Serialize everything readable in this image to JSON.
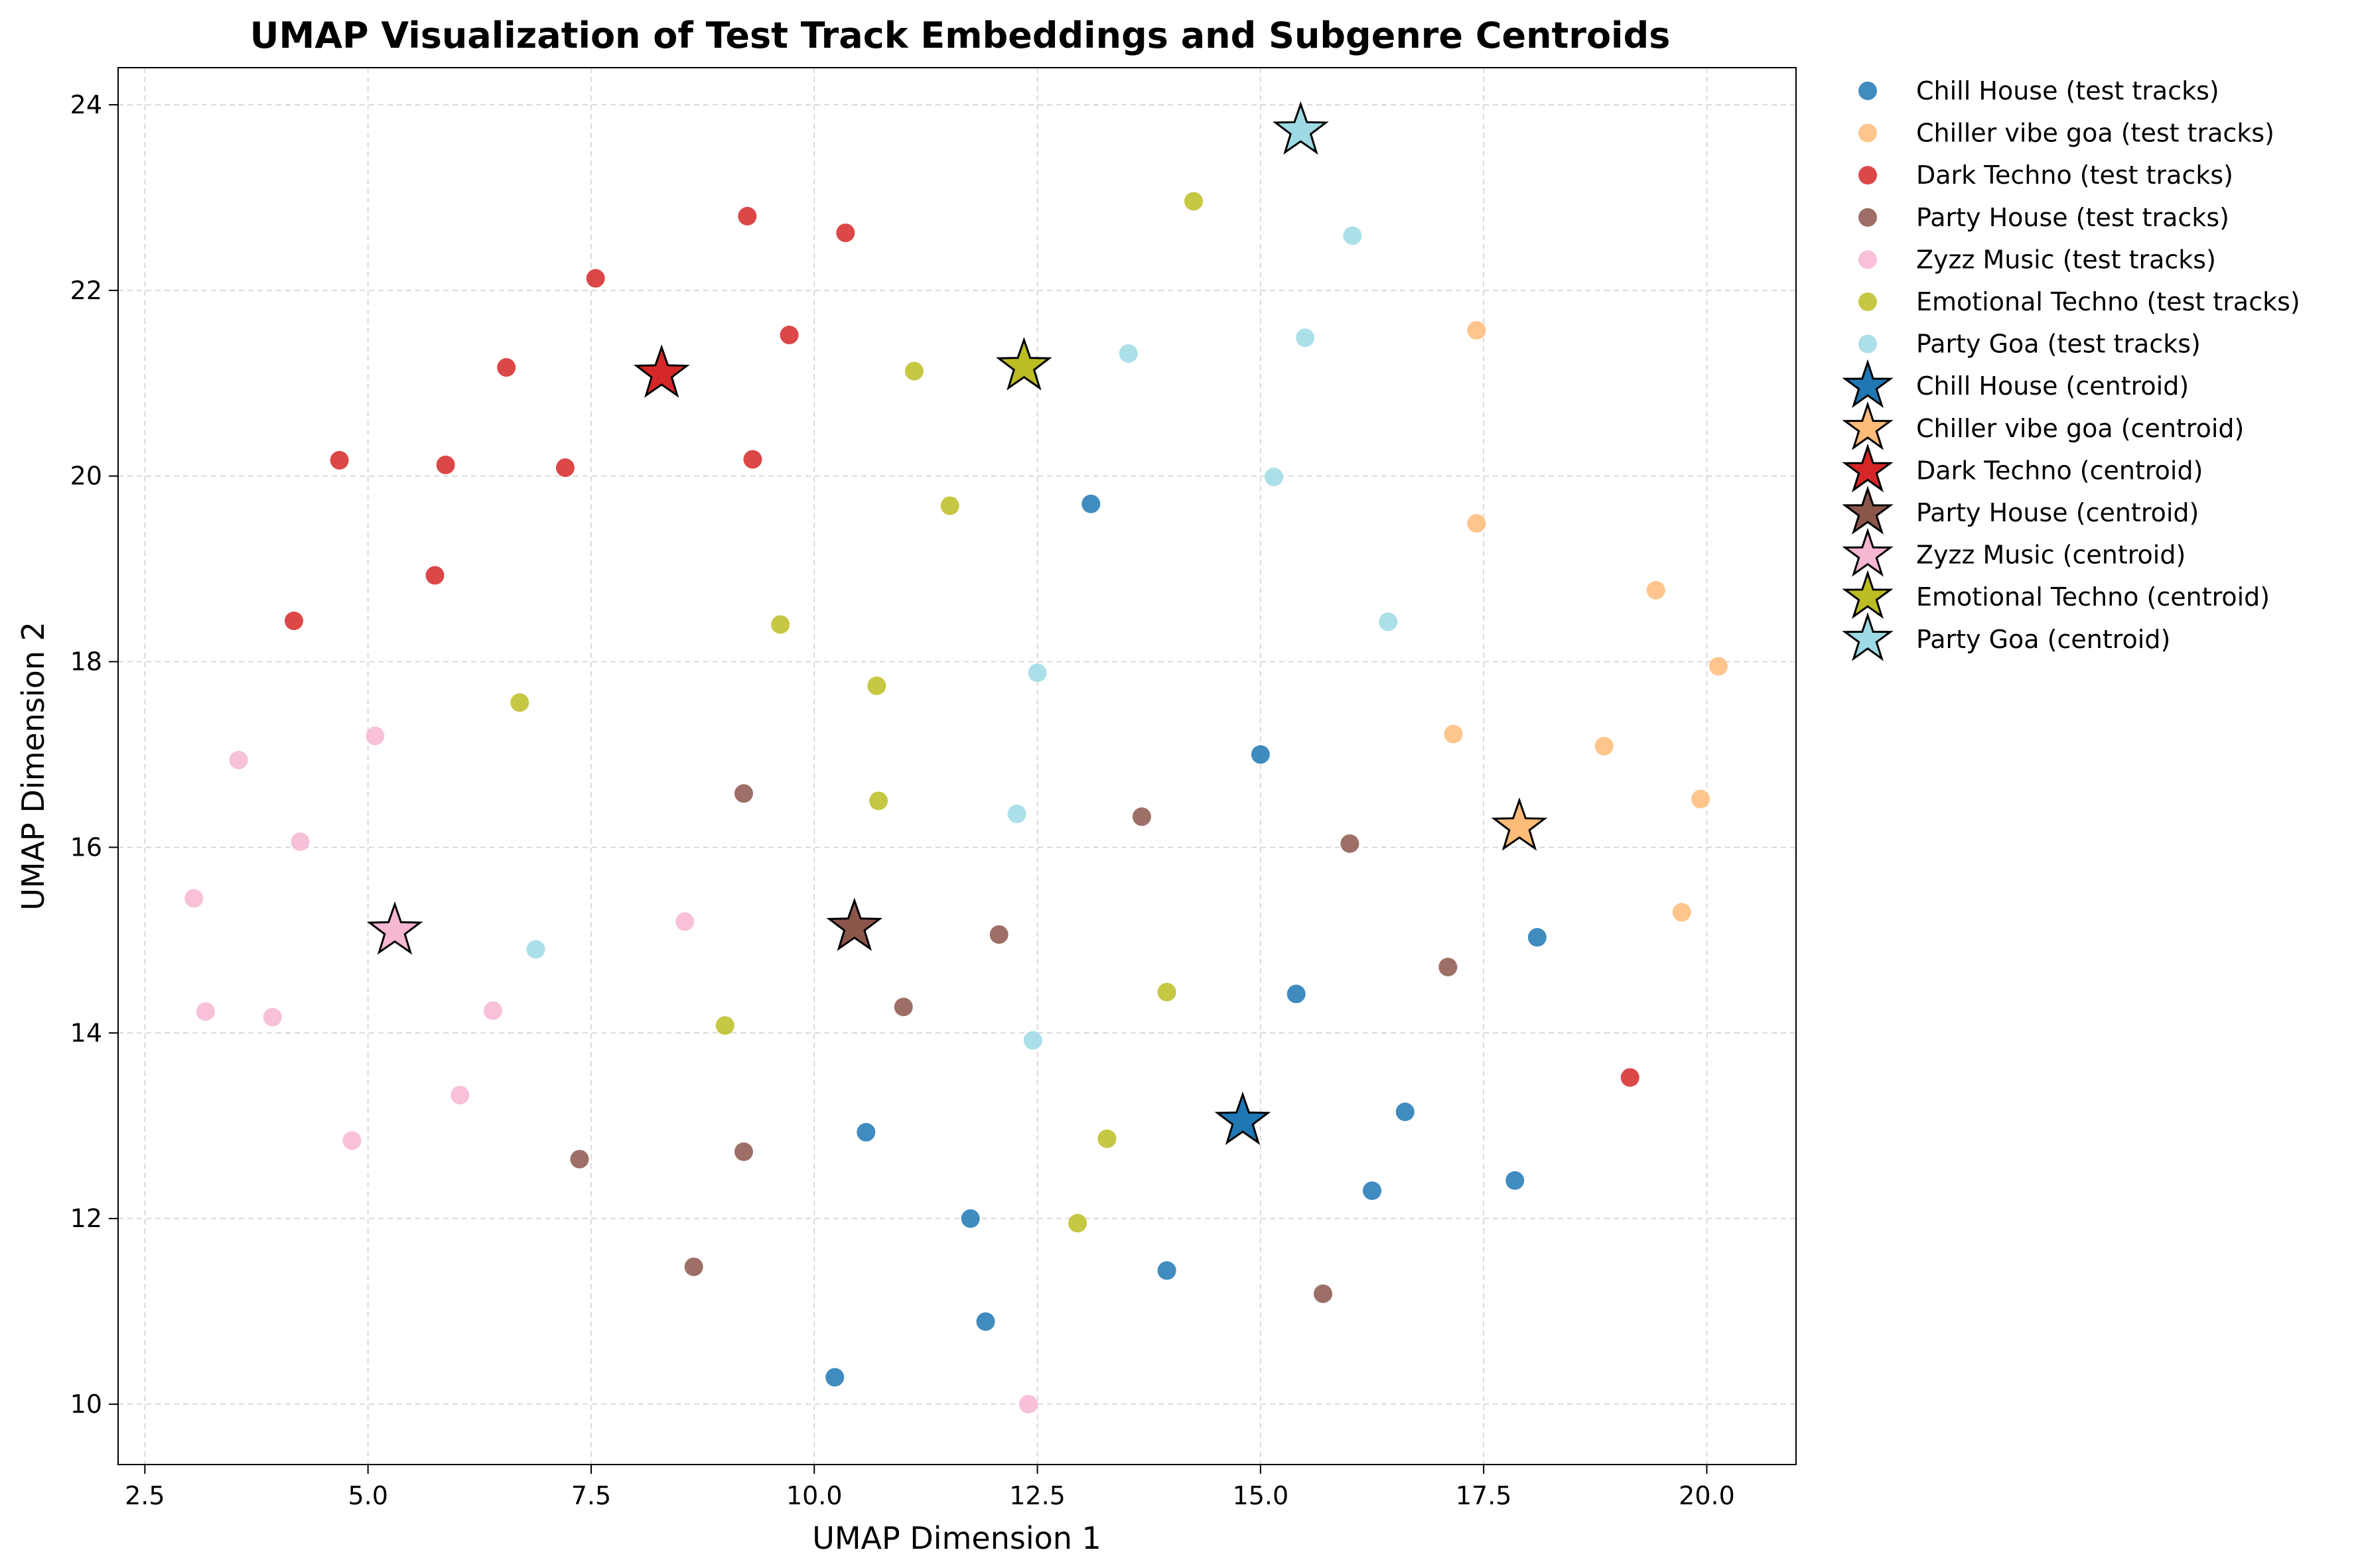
{
  "chart_data": {
    "type": "scatter",
    "title": "UMAP Visualization of Test Track Embeddings and Subgenre Centroids",
    "xlabel": "UMAP Dimension 1",
    "ylabel": "UMAP Dimension 2",
    "xlim": [
      2.2,
      21.0
    ],
    "ylim": [
      9.35,
      24.4
    ],
    "xticks": [
      2.5,
      5.0,
      7.5,
      10.0,
      12.5,
      15.0,
      17.5,
      20.0
    ],
    "xtick_labels": [
      "2.5",
      "5.0",
      "7.5",
      "10.0",
      "12.5",
      "15.0",
      "17.5",
      "20.0"
    ],
    "yticks": [
      10,
      12,
      14,
      16,
      18,
      20,
      22,
      24
    ],
    "ytick_labels": [
      "10",
      "12",
      "14",
      "16",
      "18",
      "20",
      "22",
      "24"
    ],
    "grid": true,
    "legend_position": "outside-right",
    "series": [
      {
        "name": "Chill House (test tracks)",
        "color": "#1f77b4",
        "points": [
          [
            13.1,
            19.7
          ],
          [
            15.0,
            17.0
          ],
          [
            18.1,
            15.03
          ],
          [
            15.4,
            14.42
          ],
          [
            16.62,
            13.15
          ],
          [
            17.85,
            12.41
          ],
          [
            16.25,
            12.3
          ],
          [
            10.58,
            12.93
          ],
          [
            11.75,
            12.0
          ],
          [
            13.95,
            11.44
          ],
          [
            11.92,
            10.89
          ],
          [
            10.23,
            10.29
          ]
        ]
      },
      {
        "name": "Chiller vibe goa (test tracks)",
        "color": "#ffbb78",
        "points": [
          [
            17.42,
            21.57
          ],
          [
            17.42,
            19.49
          ],
          [
            19.43,
            18.77
          ],
          [
            20.13,
            17.95
          ],
          [
            17.16,
            17.22
          ],
          [
            18.85,
            17.09
          ],
          [
            19.93,
            16.52
          ],
          [
            19.72,
            15.3
          ]
        ]
      },
      {
        "name": "Dark Techno (test tracks)",
        "color": "#d62728",
        "points": [
          [
            9.25,
            22.8
          ],
          [
            10.35,
            22.62
          ],
          [
            7.55,
            22.13
          ],
          [
            9.72,
            21.52
          ],
          [
            6.55,
            21.17
          ],
          [
            4.68,
            20.17
          ],
          [
            5.87,
            20.12
          ],
          [
            7.21,
            20.09
          ],
          [
            9.31,
            20.18
          ],
          [
            5.75,
            18.93
          ],
          [
            4.17,
            18.44
          ],
          [
            19.14,
            13.52
          ]
        ]
      },
      {
        "name": "Party House (test tracks)",
        "color": "#8c564b",
        "points": [
          [
            9.21,
            16.58
          ],
          [
            13.67,
            16.33
          ],
          [
            16.0,
            16.04
          ],
          [
            12.07,
            15.06
          ],
          [
            17.1,
            14.71
          ],
          [
            11.0,
            14.28
          ],
          [
            7.37,
            12.64
          ],
          [
            9.21,
            12.72
          ],
          [
            8.65,
            11.48
          ],
          [
            15.7,
            11.19
          ]
        ]
      },
      {
        "name": "Zyzz Music (test tracks)",
        "color": "#f7b6d2",
        "points": [
          [
            3.55,
            16.94
          ],
          [
            5.08,
            17.2
          ],
          [
            4.24,
            16.06
          ],
          [
            3.05,
            15.45
          ],
          [
            8.55,
            15.2
          ],
          [
            3.18,
            14.23
          ],
          [
            3.93,
            14.17
          ],
          [
            6.4,
            14.24
          ],
          [
            6.03,
            13.33
          ],
          [
            4.82,
            12.84
          ],
          [
            12.4,
            10.0
          ]
        ]
      },
      {
        "name": "Emotional Techno (test tracks)",
        "color": "#bcbd22",
        "points": [
          [
            14.25,
            22.96
          ],
          [
            11.12,
            21.13
          ],
          [
            11.52,
            19.68
          ],
          [
            9.62,
            18.4
          ],
          [
            10.7,
            17.74
          ],
          [
            6.7,
            17.56
          ],
          [
            10.72,
            16.5
          ],
          [
            13.95,
            14.44
          ],
          [
            9.0,
            14.08
          ],
          [
            13.28,
            12.86
          ],
          [
            12.95,
            11.95
          ]
        ]
      },
      {
        "name": "Party Goa (test tracks)",
        "color": "#9edae5",
        "points": [
          [
            16.03,
            22.59
          ],
          [
            13.52,
            21.32
          ],
          [
            15.5,
            21.49
          ],
          [
            15.15,
            19.99
          ],
          [
            16.43,
            18.43
          ],
          [
            12.5,
            17.88
          ],
          [
            12.27,
            16.36
          ],
          [
            6.88,
            14.9
          ],
          [
            12.45,
            13.92
          ]
        ]
      }
    ],
    "centroids": [
      {
        "name": "Chill House (centroid)",
        "color": "#1f77b4",
        "x": 14.8,
        "y": 13.05
      },
      {
        "name": "Chiller vibe goa (centroid)",
        "color": "#ffbb78",
        "x": 17.9,
        "y": 16.22
      },
      {
        "name": "Dark Techno (centroid)",
        "color": "#d62728",
        "x": 8.29,
        "y": 21.1
      },
      {
        "name": "Party House (centroid)",
        "color": "#8c564b",
        "x": 10.45,
        "y": 15.14
      },
      {
        "name": "Zyzz Music (centroid)",
        "color": "#f7b6d2",
        "x": 5.3,
        "y": 15.1
      },
      {
        "name": "Emotional Techno (centroid)",
        "color": "#bcbd22",
        "x": 12.35,
        "y": 21.18
      },
      {
        "name": "Party Goa (centroid)",
        "color": "#9edae5",
        "x": 15.45,
        "y": 23.72
      }
    ]
  }
}
